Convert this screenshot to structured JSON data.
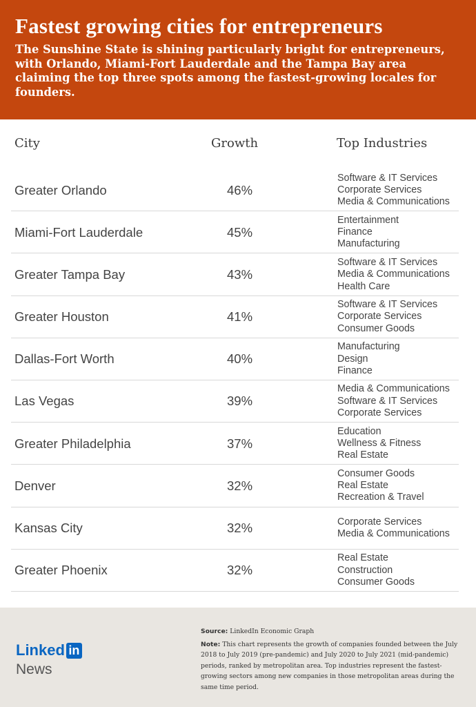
{
  "header": {
    "title": "Fastest growing cities for entrepreneurs",
    "subtitle": "The Sunshine State is shining particularly bright for entrepreneurs, with Orlando, Miami-Fort Lauderdale and the Tampa Bay area claiming the top three spots among the fastest-growing locales for founders."
  },
  "columns": {
    "city": "City",
    "growth": "Growth",
    "industries": "Top Industries"
  },
  "rows": [
    {
      "city": "Greater Orlando",
      "growth": "46%",
      "industries": [
        "Software & IT Services",
        "Corporate Services",
        "Media & Communications"
      ]
    },
    {
      "city": "Miami-Fort Lauderdale",
      "growth": "45%",
      "industries": [
        "Entertainment",
        "Finance",
        "Manufacturing"
      ]
    },
    {
      "city": "Greater Tampa Bay",
      "growth": "43%",
      "industries": [
        "Software & IT Services",
        "Media & Communications",
        "Health Care"
      ]
    },
    {
      "city": "Greater Houston",
      "growth": "41%",
      "industries": [
        "Software & IT Services",
        "Corporate Services",
        "Consumer Goods"
      ]
    },
    {
      "city": "Dallas-Fort Worth",
      "growth": "40%",
      "industries": [
        "Manufacturing",
        "Design",
        "Finance"
      ]
    },
    {
      "city": "Las Vegas",
      "growth": "39%",
      "industries": [
        "Media & Communications",
        "Software & IT Services",
        "Corporate Services"
      ]
    },
    {
      "city": "Greater Philadelphia",
      "growth": "37%",
      "industries": [
        "Education",
        "Wellness & Fitness",
        "Real Estate"
      ]
    },
    {
      "city": "Denver",
      "growth": "32%",
      "industries": [
        "Consumer Goods",
        "Real Estate",
        "Recreation & Travel"
      ]
    },
    {
      "city": "Kansas City",
      "growth": "32%",
      "industries": [
        "Corporate Services",
        "Media & Communications"
      ]
    },
    {
      "city": "Greater Phoenix",
      "growth": "32%",
      "industries": [
        "Real Estate",
        "Construction",
        "Consumer Goods"
      ]
    }
  ],
  "footer": {
    "logo_word": "Linked",
    "logo_box": "in",
    "logo_news": "News",
    "source_label": "Source:",
    "source_text": " LinkedIn Economic Graph",
    "note_label": "Note:",
    "note_text": " This chart represents the growth of companies founded between the July 2018 to July 2019 (pre-pandemic) and July 2020 to July 2021 (mid-pandemic) periods, ranked by metropolitan area. Top industries represent the fastest-growing sectors among new companies in those metropolitan areas during the same time period."
  },
  "colors": {
    "header_bg": "#c4470e",
    "footer_bg": "#e9e6e1",
    "linkedin_blue": "#0a66c2"
  }
}
